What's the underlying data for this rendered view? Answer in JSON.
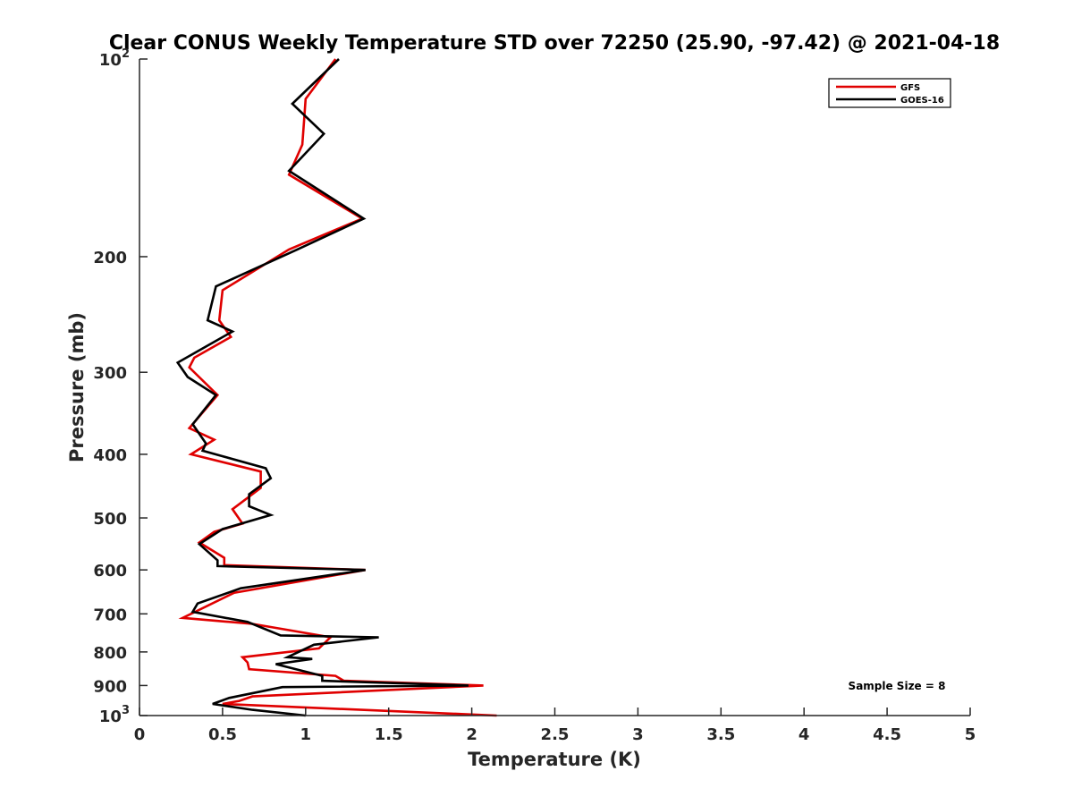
{
  "chart_data": {
    "type": "line",
    "title": "Clear CONUS Weekly Temperature STD over 72250 (25.90, -97.42) @ 2021-04-18",
    "xlabel": "Temperature (K)",
    "ylabel": "Pressure (mb)",
    "xlim": [
      0,
      5
    ],
    "ylim": [
      100,
      1000
    ],
    "y_scale": "log",
    "y_reversed": true,
    "grid": false,
    "legend_position": "top-right",
    "x_ticks": [
      "0",
      "0.5",
      "1",
      "1.5",
      "2",
      "2.5",
      "3",
      "3.5",
      "4",
      "4.5",
      "5"
    ],
    "y_ticks": [
      {
        "value": 100,
        "base": "10",
        "exp": "2"
      },
      {
        "value": 200,
        "label": "200"
      },
      {
        "value": 300,
        "label": "300"
      },
      {
        "value": 400,
        "label": "400"
      },
      {
        "value": 500,
        "label": "500"
      },
      {
        "value": 600,
        "label": "600"
      },
      {
        "value": 700,
        "label": "700"
      },
      {
        "value": 800,
        "label": "800"
      },
      {
        "value": 900,
        "label": "900"
      },
      {
        "value": 1000,
        "base": "10",
        "exp": "3"
      }
    ],
    "series": [
      {
        "name": "GFS",
        "color": "#e00000",
        "points": [
          [
            1.18,
            100
          ],
          [
            1.0,
            115
          ],
          [
            0.99,
            125
          ],
          [
            0.98,
            135
          ],
          [
            0.9,
            150
          ],
          [
            1.34,
            175
          ],
          [
            0.9,
            195
          ],
          [
            0.5,
            225
          ],
          [
            0.48,
            250
          ],
          [
            0.55,
            265
          ],
          [
            0.33,
            285
          ],
          [
            0.3,
            295
          ],
          [
            0.47,
            325
          ],
          [
            0.3,
            365
          ],
          [
            0.45,
            380
          ],
          [
            0.31,
            400
          ],
          [
            0.73,
            425
          ],
          [
            0.73,
            450
          ],
          [
            0.56,
            485
          ],
          [
            0.62,
            510
          ],
          [
            0.45,
            525
          ],
          [
            0.36,
            545
          ],
          [
            0.51,
            575
          ],
          [
            0.51,
            590
          ],
          [
            1.36,
            600
          ],
          [
            0.57,
            650
          ],
          [
            0.26,
            710
          ],
          [
            0.68,
            725
          ],
          [
            1.15,
            760
          ],
          [
            1.08,
            790
          ],
          [
            0.62,
            815
          ],
          [
            0.65,
            830
          ],
          [
            0.66,
            850
          ],
          [
            1.18,
            870
          ],
          [
            1.23,
            885
          ],
          [
            2.07,
            900
          ],
          [
            0.68,
            935
          ],
          [
            0.6,
            950
          ],
          [
            0.5,
            960
          ],
          [
            2.15,
            1000
          ]
        ]
      },
      {
        "name": "GOES-16",
        "color": "#000000",
        "points": [
          [
            1.2,
            100
          ],
          [
            0.92,
            117
          ],
          [
            1.11,
            130
          ],
          [
            0.9,
            148
          ],
          [
            1.35,
            175
          ],
          [
            0.95,
            195
          ],
          [
            0.46,
            222
          ],
          [
            0.41,
            250
          ],
          [
            0.56,
            260
          ],
          [
            0.23,
            290
          ],
          [
            0.29,
            305
          ],
          [
            0.46,
            325
          ],
          [
            0.32,
            360
          ],
          [
            0.4,
            385
          ],
          [
            0.38,
            395
          ],
          [
            0.76,
            420
          ],
          [
            0.79,
            435
          ],
          [
            0.66,
            460
          ],
          [
            0.66,
            480
          ],
          [
            0.79,
            495
          ],
          [
            0.5,
            520
          ],
          [
            0.36,
            548
          ],
          [
            0.47,
            580
          ],
          [
            0.47,
            592
          ],
          [
            1.36,
            600
          ],
          [
            0.61,
            640
          ],
          [
            0.35,
            675
          ],
          [
            0.32,
            695
          ],
          [
            0.65,
            720
          ],
          [
            0.85,
            755
          ],
          [
            1.44,
            760
          ],
          [
            1.05,
            780
          ],
          [
            0.89,
            815
          ],
          [
            1.04,
            820
          ],
          [
            0.82,
            835
          ],
          [
            1.1,
            870
          ],
          [
            1.1,
            885
          ],
          [
            1.98,
            900
          ],
          [
            0.86,
            905
          ],
          [
            0.54,
            940
          ],
          [
            0.44,
            960
          ],
          [
            0.68,
            980
          ],
          [
            1.0,
            1000
          ]
        ]
      }
    ],
    "annotations": [
      "Sample Size = 8"
    ]
  }
}
